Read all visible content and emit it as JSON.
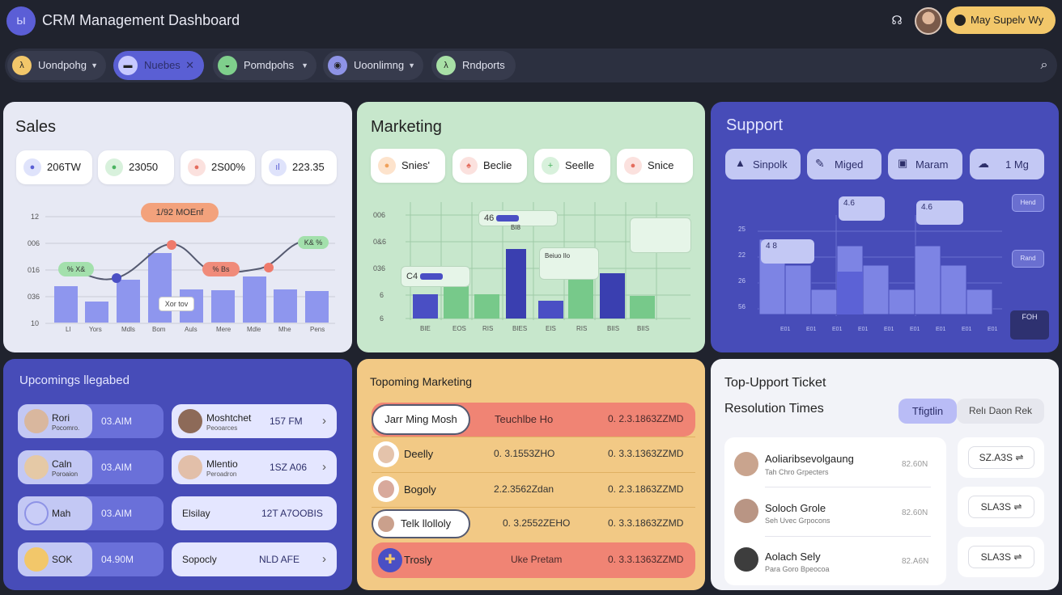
{
  "app": {
    "title": "CRM Management Dashboard",
    "logo_icon": "ы",
    "user_label": "May Supelv Wy"
  },
  "nav": {
    "tabs": [
      {
        "label": "Uondpohg",
        "icon": "λ",
        "icon_color": "#f2c76a"
      },
      {
        "label": "Nuebes",
        "icon": "▬",
        "icon_color": "#c7c9ff",
        "close": "✕"
      },
      {
        "label": "Pomdpohs",
        "icon": "◒",
        "icon_color": "#7fcf8c"
      },
      {
        "label": "Uoonlimng",
        "icon": "◉",
        "icon_color": "#8e93e6"
      },
      {
        "label": "Rndports",
        "icon": "λ",
        "icon_color": "#a8e0a6"
      }
    ],
    "chevron": "▼",
    "search_icon": "⌕"
  },
  "sales": {
    "title": "Sales",
    "stats": [
      {
        "value": "206TW",
        "icon": "●",
        "icon_bg": "#dfe3fb",
        "icon_color": "#5a5fd4"
      },
      {
        "value": "23050",
        "icon": "●",
        "icon_bg": "#d8f1dc",
        "icon_color": "#4ab360"
      },
      {
        "value": "2S00%",
        "icon": "●",
        "icon_bg": "#fbe1de",
        "icon_color": "#e46d5e"
      },
      {
        "value": "223.35",
        "icon": "ıl",
        "icon_bg": "#dfe3fb",
        "icon_color": "#5a5fd4"
      }
    ],
    "callouts": {
      "top": "1/92 MOEnf",
      "left": "% X&",
      "mid": "% Bs",
      "right": "K& % ",
      "inner": "Xor tov"
    }
  },
  "marketing": {
    "title": "Marketing",
    "stats": [
      {
        "value": "Snies'",
        "icon": "●",
        "icon_bg": "#fde3cc",
        "icon_color": "#f0a15a"
      },
      {
        "value": "Beclie",
        "icon": "♠",
        "icon_bg": "#fbe1de",
        "icon_color": "#e46d5e"
      },
      {
        "value": "Seelle",
        "icon": "+",
        "icon_bg": "#d8f1dc",
        "icon_color": "#4ab360"
      },
      {
        "value": "Snice",
        "icon": "●",
        "icon_bg": "#fbe1de",
        "icon_color": "#e46d5e"
      }
    ],
    "callouts": {
      "a": "46",
      "b": "C4",
      "c": "Beiuo Ilo"
    },
    "bar_label": "BI8"
  },
  "support": {
    "title": "Support",
    "chips": [
      {
        "label": "Sinpolk",
        "icon": "▲"
      },
      {
        "label": "Miged",
        "icon": "✎"
      },
      {
        "label": "Maram",
        "icon": "▣"
      },
      {
        "label": "1 Mg",
        "icon": "☁"
      }
    ],
    "tags": {
      "one": "Hend",
      "two": "Rand",
      "three": "FOH"
    },
    "callouts": {
      "a": "4.6",
      "b": "4.6",
      "c": "4 8"
    }
  },
  "upcoming": {
    "title": "Upcomings llegabed",
    "left": [
      {
        "name": "Rori",
        "sub": "Pocomro.",
        "time": "03.AIM",
        "avatar": "#d9b79e"
      },
      {
        "name": "Caln",
        "sub": "Poroaion",
        "time": "03.AIM",
        "avatar": "#e5c9a6"
      },
      {
        "name": "Mah",
        "sub": "",
        "time": "03.AIM",
        "avatar": "#c9cdf7"
      },
      {
        "name": "SOK",
        "sub": "",
        "time": "04.90M",
        "avatar": "#f2c76a"
      }
    ],
    "right": [
      {
        "name": "Moshtchet",
        "sub": "Peooarces",
        "time": "157 FM",
        "avatar": "#8d6a58"
      },
      {
        "name": "Mlentio",
        "sub": "Peroadron",
        "time": "1SZ A06",
        "avatar": "#e2bfa9"
      },
      {
        "name": "Elsilay",
        "sub": "",
        "time": "12T A7OOBIS",
        "avatar": ""
      },
      {
        "name": "Sopocly",
        "sub": "",
        "time": "NLD AFE",
        "avatar": ""
      }
    ],
    "chev": "›"
  },
  "topmarketing": {
    "title": "Topoming Marketing",
    "head": {
      "name": "Jarr Ming Mosh",
      "mid": "Teuchlbe Ho",
      "val": "0. 2.3.1863ZZMD"
    },
    "rows": [
      {
        "name": "Deelly",
        "mid": "0. 3.1553ZHO",
        "val": "0. 3.3.1363ZZMD",
        "avatar": "#e4c3ab"
      },
      {
        "name": "Bogoly",
        "mid": "2.2.3562Zdan",
        "val": "0. 2.3.1863ZZMD",
        "avatar": "#d8a99c"
      },
      {
        "name": "Telk llolloly",
        "mid": "0. 3.2552ZEHO",
        "val": "0. 3.3.1863ZZMD",
        "avatar": "#caa08c"
      },
      {
        "name": "Trosly",
        "mid": "Uke  Pretam",
        "val": "0. 3.3.1363ZZMD",
        "avatar": "#4a4fc4"
      }
    ]
  },
  "tickets": {
    "title": "Top-Upport Ticket",
    "subtitle": "Resolution Times",
    "tab_active": "Tfigtlin",
    "tab_other": "Relı Daon Rek",
    "items": [
      {
        "name": "Aoliaribsevolgaung",
        "sub": "Tah Chro Grpecters",
        "metric": "82.60N",
        "avatar": "#c9a48e"
      },
      {
        "name": "Soloch Grole",
        "sub": "Seh Uvec Grpocons",
        "metric": "82.60N",
        "avatar": "#b99584"
      },
      {
        "name": "Aolach Sely",
        "sub": "Para Goro Bpeocoa",
        "metric": "82.A6N",
        "avatar": "#3d3d3d"
      }
    ],
    "buttons": [
      {
        "label": "SZ.A3S"
      },
      {
        "label": "SLA3S"
      },
      {
        "label": "SLA3S"
      }
    ],
    "btn_icon": "⇌"
  }
}
